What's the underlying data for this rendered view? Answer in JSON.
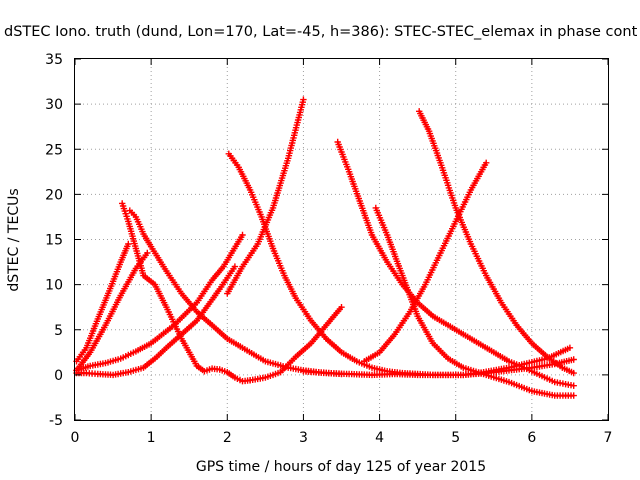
{
  "chart_data": {
    "type": "scatter",
    "title": "dSTEC Iono. truth (dund, Lon=170, Lat=-45, h=386): STEC-STEC_elemax in phase cont",
    "xlabel": "GPS time / hours of day 125 of year 2015",
    "ylabel": "dSTEC  / TECUs",
    "xlim": [
      0,
      7
    ],
    "ylim": [
      -5,
      35
    ],
    "xticks": [
      0,
      1,
      2,
      3,
      4,
      5,
      6,
      7
    ],
    "yticks": [
      -5,
      0,
      5,
      10,
      15,
      20,
      25,
      30,
      35
    ],
    "grid": true,
    "legend": "none",
    "color": "#ff0000",
    "series": [
      {
        "x": [
          0.02,
          0.15,
          0.3,
          0.45,
          0.6,
          0.7
        ],
        "y": [
          1.5,
          3.0,
          6.2,
          9.3,
          12.5,
          14.5
        ]
      },
      {
        "x": [
          0.02,
          0.2,
          0.4,
          0.6,
          0.8,
          1.0,
          1.3,
          1.6,
          1.8,
          1.95,
          2.2
        ],
        "y": [
          0.5,
          1.0,
          1.3,
          1.8,
          2.6,
          3.5,
          5.5,
          8.0,
          10.5,
          12.0,
          15.5
        ]
      },
      {
        "x": [
          0.02,
          0.15,
          0.3,
          0.5,
          0.7,
          0.9,
          1.05,
          1.2,
          1.4,
          1.6,
          1.9,
          2.1
        ],
        "y": [
          0.2,
          0.2,
          0.1,
          0.0,
          0.3,
          0.8,
          1.8,
          3.0,
          4.5,
          6.0,
          9.5,
          12.0
        ]
      },
      {
        "x": [
          0.02,
          0.2,
          0.4,
          0.6,
          0.8,
          0.95
        ],
        "y": [
          0.5,
          2.5,
          5.5,
          8.8,
          11.8,
          13.5
        ]
      },
      {
        "x": [
          0.62,
          0.7,
          0.8,
          0.9,
          1.05,
          1.2,
          1.4,
          1.6,
          1.7,
          1.8,
          1.9,
          2.0,
          2.1,
          2.2,
          2.3
        ],
        "y": [
          19.0,
          17.0,
          14.0,
          11.0,
          10.0,
          7.5,
          4.0,
          1.0,
          0.4,
          0.7,
          0.6,
          0.3,
          -0.3,
          -0.7,
          -0.6
        ]
      },
      {
        "x": [
          0.72,
          0.8,
          0.9,
          1.0,
          1.2,
          1.4,
          1.6,
          1.8,
          2.0,
          2.2,
          2.5,
          2.8,
          3.0,
          3.2,
          3.5
        ],
        "y": [
          18.2,
          17.5,
          15.6,
          14.2,
          11.5,
          9.0,
          7.0,
          5.5,
          4.0,
          3.0,
          1.5,
          0.8,
          0.5,
          0.3,
          0.1
        ]
      },
      {
        "x": [
          2.3,
          2.5,
          2.7,
          2.9,
          3.1,
          3.3,
          3.5
        ],
        "y": [
          -0.6,
          -0.3,
          0.3,
          2.0,
          3.5,
          5.5,
          7.5
        ]
      },
      {
        "x": [
          2.02,
          2.15,
          2.3,
          2.45,
          2.6,
          2.75,
          2.9,
          3.1,
          3.3,
          3.5,
          3.7,
          3.9,
          4.1,
          4.3,
          4.5,
          4.7,
          4.9,
          5.1,
          5.3,
          5.5,
          5.7,
          5.9,
          6.2,
          6.5
        ],
        "y": [
          24.5,
          23.0,
          20.5,
          17.5,
          14.0,
          11.0,
          8.5,
          6.0,
          4.0,
          2.5,
          1.5,
          0.8,
          0.4,
          0.2,
          0.1,
          0.0,
          0.0,
          0.0,
          0.2,
          0.5,
          0.8,
          1.2,
          1.8,
          3.0
        ]
      },
      {
        "x": [
          2.0,
          2.2,
          2.4,
          2.6,
          2.8,
          3.0
        ],
        "y": [
          9.0,
          12.0,
          14.5,
          18.5,
          24.0,
          30.5
        ]
      },
      {
        "x": [
          3.0,
          3.3,
          3.6,
          3.9,
          4.2,
          4.5,
          4.8,
          5.1,
          5.4,
          5.7,
          6.0,
          6.3,
          6.55
        ],
        "y": [
          0.4,
          0.2,
          0.1,
          0.0,
          0.1,
          0.0,
          0.0,
          0.0,
          0.2,
          0.5,
          0.8,
          1.2,
          1.7
        ]
      },
      {
        "x": [
          3.45,
          3.6,
          3.75,
          3.9,
          4.1,
          4.3,
          4.5,
          4.7,
          4.9,
          5.1,
          5.3,
          5.5,
          5.7,
          5.9,
          6.1,
          6.3,
          6.55
        ],
        "y": [
          25.8,
          22.5,
          19.0,
          15.5,
          12.5,
          10.0,
          8.0,
          6.5,
          5.5,
          4.5,
          3.5,
          2.5,
          1.5,
          0.8,
          0.0,
          -0.8,
          -1.2
        ]
      },
      {
        "x": [
          3.95,
          4.1,
          4.3,
          4.5,
          4.7,
          4.9,
          5.1,
          5.4,
          5.7,
          6.0,
          6.3,
          6.55
        ],
        "y": [
          18.5,
          15.5,
          11.0,
          6.5,
          3.5,
          1.8,
          0.8,
          0.0,
          -0.8,
          -1.8,
          -2.3,
          -2.3
        ]
      },
      {
        "x": [
          3.8,
          4.0,
          4.2,
          4.4,
          4.6,
          4.8,
          5.0,
          5.2,
          5.4
        ],
        "y": [
          1.5,
          2.5,
          4.5,
          7.0,
          10.0,
          13.5,
          17.0,
          20.5,
          23.5
        ]
      },
      {
        "x": [
          4.52,
          4.65,
          4.8,
          5.0,
          5.2,
          5.4,
          5.6,
          5.8,
          6.0,
          6.2,
          6.4,
          6.55
        ],
        "y": [
          29.2,
          27.0,
          23.5,
          18.5,
          14.5,
          11.0,
          8.0,
          5.5,
          3.5,
          2.0,
          0.8,
          0.2
        ]
      }
    ]
  }
}
